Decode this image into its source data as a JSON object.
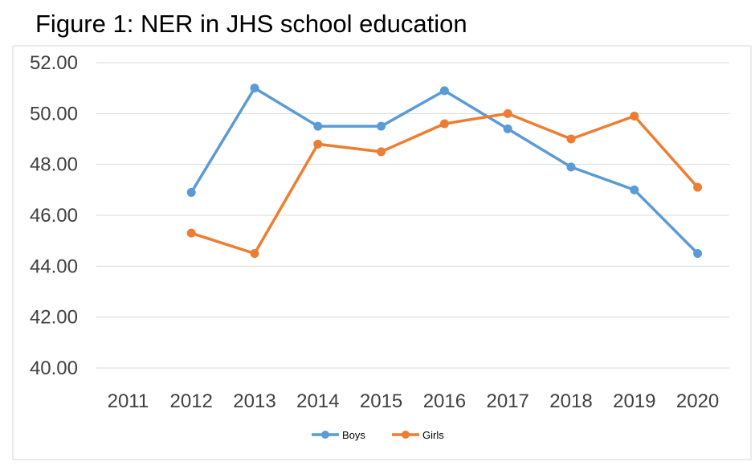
{
  "chart_data": {
    "type": "line",
    "title": "Figure 1: NER in JHS school education",
    "xlabel": "",
    "ylabel": "",
    "categories": [
      "2011",
      "2012",
      "2013",
      "2014",
      "2015",
      "2016",
      "2017",
      "2018",
      "2019",
      "2020"
    ],
    "ylim": [
      40,
      52
    ],
    "yticks": [
      "40.00",
      "42.00",
      "44.00",
      "46.00",
      "48.00",
      "50.00",
      "52.00"
    ],
    "grid": true,
    "legend_position": "bottom",
    "series": [
      {
        "name": "Boys",
        "color": "#5b9bd5",
        "values": [
          null,
          46.9,
          51.0,
          49.5,
          49.5,
          50.9,
          49.4,
          47.9,
          47.0,
          44.5
        ]
      },
      {
        "name": "Girls",
        "color": "#ed7d31",
        "values": [
          null,
          45.3,
          44.5,
          48.8,
          48.5,
          49.6,
          50.0,
          49.0,
          49.9,
          47.1
        ]
      }
    ]
  }
}
